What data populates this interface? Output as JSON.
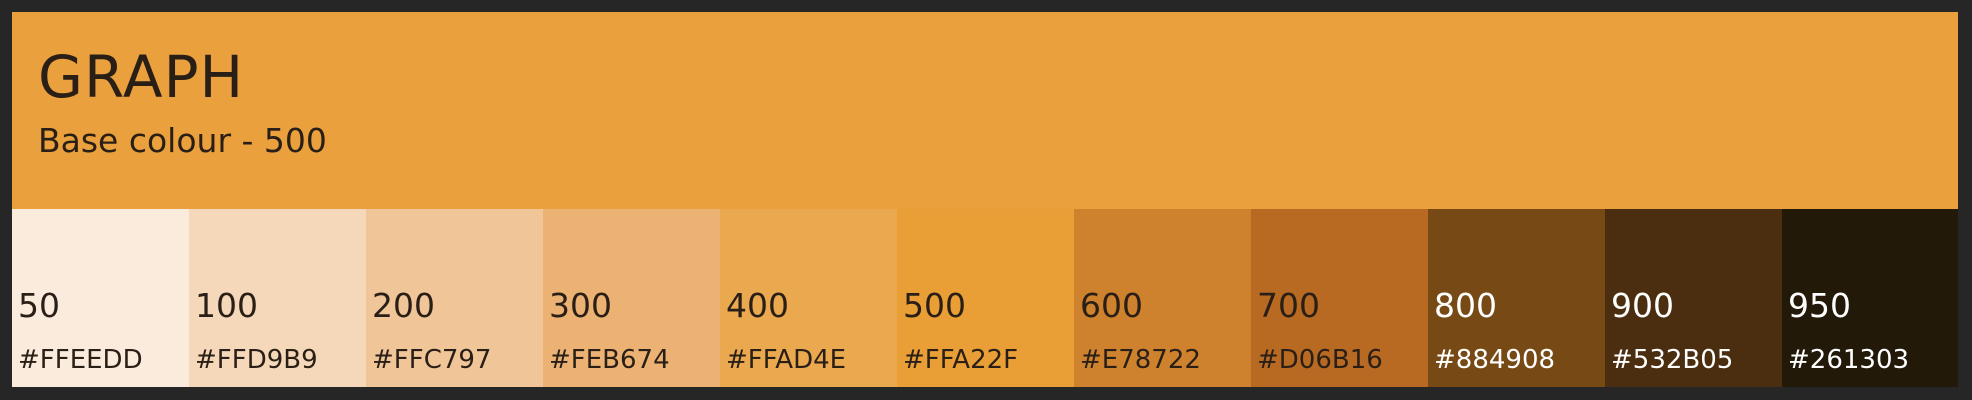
{
  "header": {
    "title": "GRAPH",
    "subtitle": "Base colour - 500",
    "base_color": "#E9A03D"
  },
  "swatches": [
    {
      "shade": "50",
      "hex": "#FFEEDD",
      "display": "#FBEBDC",
      "text_color": "#2a1f16"
    },
    {
      "shade": "100",
      "hex": "#FFD9B9",
      "display": "#F5D8B9",
      "text_color": "#2a1f16"
    },
    {
      "shade": "200",
      "hex": "#FFC797",
      "display": "#F0C597",
      "text_color": "#2a1f16"
    },
    {
      "shade": "300",
      "hex": "#FEB674",
      "display": "#ECB273",
      "text_color": "#2a1f16"
    },
    {
      "shade": "400",
      "hex": "#FFAD4E",
      "display": "#EAA84F",
      "text_color": "#2a1f16"
    },
    {
      "shade": "500",
      "hex": "#FFA22F",
      "display": "#E99F36",
      "text_color": "#2a1f16"
    },
    {
      "shade": "600",
      "hex": "#E78722",
      "display": "#CF822E",
      "text_color": "#2a1f16"
    },
    {
      "shade": "700",
      "hex": "#D06B16",
      "display": "#B86A22",
      "text_color": "#2a1f16"
    },
    {
      "shade": "800",
      "hex": "#884908",
      "display": "#774915",
      "text_color": "#ffffff"
    },
    {
      "shade": "900",
      "hex": "#532B05",
      "display": "#4A2E0F",
      "text_color": "#ffffff"
    },
    {
      "shade": "950",
      "hex": "#261303",
      "display": "#231909",
      "text_color": "#ffffff"
    }
  ]
}
